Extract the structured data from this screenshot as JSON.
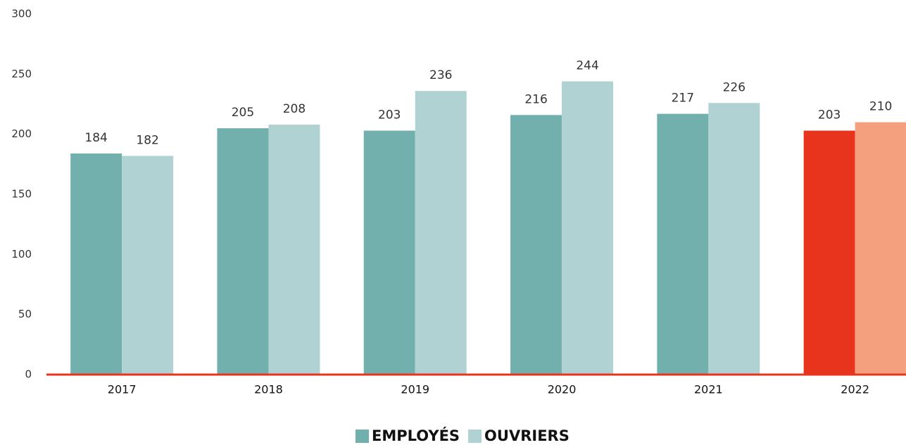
{
  "chart_data": {
    "type": "bar",
    "categories": [
      "2017",
      "2018",
      "2019",
      "2020",
      "2021",
      "2022"
    ],
    "series": [
      {
        "name": "EMPLOYÉS",
        "color": "#72b0ae",
        "colors": [
          "#72b0ae",
          "#72b0ae",
          "#72b0ae",
          "#72b0ae",
          "#72b0ae",
          "#e8341c"
        ],
        "values": [
          184,
          205,
          203,
          216,
          217,
          203
        ]
      },
      {
        "name": "OUVRIERS",
        "color": "#b1d2d2",
        "colors": [
          "#b1d2d2",
          "#b1d2d2",
          "#b1d2d2",
          "#b1d2d2",
          "#b1d2d2",
          "#f4a07e"
        ],
        "values": [
          182,
          208,
          236,
          244,
          226,
          210
        ]
      }
    ],
    "ylim": [
      0,
      300
    ],
    "yticks": [
      0,
      50,
      100,
      150,
      200,
      250,
      300
    ],
    "grid": false,
    "axis_color": "#e8341c",
    "legend": "bottom"
  }
}
